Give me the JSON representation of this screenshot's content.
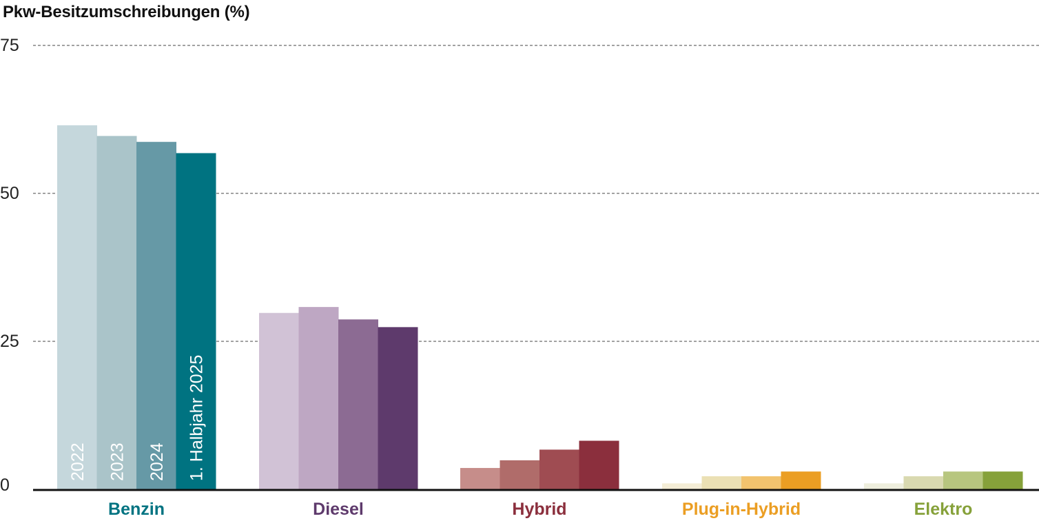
{
  "chart_data": {
    "type": "bar",
    "title": "Pkw-Besitzumschreibungen (%)",
    "ylim": [
      0,
      75
    ],
    "yticks": [
      0,
      25,
      50,
      75
    ],
    "grid": true,
    "categories": [
      "Benzin",
      "Diesel",
      "Hybrid",
      "Plug-in-Hybrid",
      "Elektro"
    ],
    "category_colors": [
      "#007381",
      "#5e3a6c",
      "#8b2f3d",
      "#eb9e23",
      "#86a13a"
    ],
    "series": [
      {
        "name": "2022",
        "values": [
          61.5,
          29.8,
          3.6,
          1.0,
          1.0
        ]
      },
      {
        "name": "2023",
        "values": [
          59.7,
          30.8,
          4.9,
          2.2,
          2.2
        ]
      },
      {
        "name": "2024",
        "values": [
          58.7,
          28.7,
          6.7,
          2.2,
          3.0
        ]
      },
      {
        "name": "1. Halbjahr 2025",
        "values": [
          56.8,
          27.4,
          8.2,
          3.0,
          3.0
        ]
      }
    ],
    "bar_colors": [
      [
        "#c5d7dc",
        "#aac4c9",
        "#6699a6",
        "#007381"
      ],
      [
        "#d1c2d6",
        "#bea7c3",
        "#8c6b93",
        "#5e3a6c"
      ],
      [
        "#c68d8a",
        "#b06c6a",
        "#9f4c52",
        "#8b2f3d"
      ],
      [
        "#f4edd6",
        "#ebe0b4",
        "#f2c36e",
        "#eb9e23"
      ],
      [
        "#eeeedd",
        "#d9d9b0",
        "#b7c67f",
        "#86a13a"
      ]
    ]
  }
}
